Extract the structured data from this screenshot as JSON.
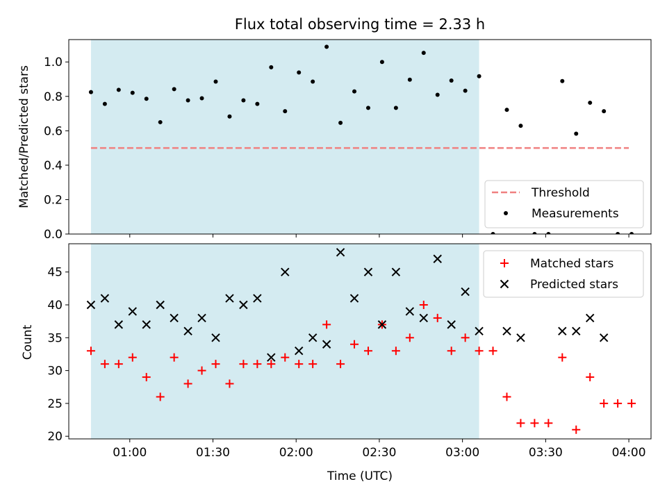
{
  "chart_data": [
    {
      "type": "scatter",
      "title": "Flux total observing time = 2.33 h",
      "ylabel": "Matched/Predicted stars",
      "xlabel": "",
      "ylim": [
        0,
        1.13
      ],
      "yticks": [
        "0.0",
        "0.2",
        "0.4",
        "0.6",
        "0.8",
        "1.0"
      ],
      "grid": false,
      "legend_position": "lower-right",
      "highlight_span": {
        "start": "00:46",
        "end": "03:06",
        "color": "#d4ebf1"
      },
      "threshold": {
        "name": "Threshold",
        "value": 0.5,
        "x_start": "00:46",
        "x_end": "04:00",
        "color": "#f08080"
      },
      "series": [
        {
          "name": "Measurements",
          "color": "#000000",
          "x": [
            "00:46",
            "00:51",
            "00:56",
            "01:01",
            "01:06",
            "01:11",
            "01:16",
            "01:21",
            "01:26",
            "01:31",
            "01:36",
            "01:41",
            "01:46",
            "01:51",
            "01:56",
            "02:01",
            "02:06",
            "02:11",
            "02:16",
            "02:21",
            "02:26",
            "02:31",
            "02:36",
            "02:41",
            "02:46",
            "02:51",
            "02:56",
            "03:01",
            "03:06",
            "03:11",
            "03:16",
            "03:21",
            "03:26",
            "03:31",
            "03:36",
            "03:41",
            "03:46",
            "03:51",
            "03:56",
            "04:01"
          ],
          "y": [
            0.825,
            0.756,
            0.838,
            0.821,
            0.786,
            0.65,
            0.842,
            0.777,
            0.789,
            0.886,
            0.683,
            0.777,
            0.756,
            0.969,
            0.714,
            0.939,
            0.886,
            1.088,
            0.646,
            0.829,
            0.733,
            1.0,
            0.733,
            0.897,
            1.053,
            0.809,
            0.892,
            0.833,
            0.917,
            0,
            0.722,
            0.629,
            0,
            0,
            0.889,
            0.583,
            0.763,
            0.714,
            0,
            0
          ]
        }
      ]
    },
    {
      "type": "scatter",
      "title": "",
      "xlabel": "Time (UTC)",
      "ylabel": "Count",
      "ylim": [
        19.6,
        49.3
      ],
      "yticks": [
        "20",
        "25",
        "30",
        "35",
        "40",
        "45"
      ],
      "xticks": [
        "01:00",
        "01:30",
        "02:00",
        "02:30",
        "03:00",
        "03:30",
        "04:00"
      ],
      "x_range": [
        "00:38",
        "04:08"
      ],
      "grid": false,
      "legend_position": "upper-right",
      "highlight_span": {
        "start": "00:46",
        "end": "03:06",
        "color": "#d4ebf1"
      },
      "series": [
        {
          "name": "Matched stars",
          "marker": "plus",
          "color": "#ff0000",
          "x": [
            "00:46",
            "00:51",
            "00:56",
            "01:01",
            "01:06",
            "01:11",
            "01:16",
            "01:21",
            "01:26",
            "01:31",
            "01:36",
            "01:41",
            "01:46",
            "01:51",
            "01:56",
            "02:01",
            "02:06",
            "02:11",
            "02:16",
            "02:21",
            "02:26",
            "02:31",
            "02:36",
            "02:41",
            "02:46",
            "02:51",
            "02:56",
            "03:01",
            "03:06",
            "03:11",
            "03:16",
            "03:21",
            "03:26",
            "03:31",
            "03:36",
            "03:41",
            "03:46",
            "03:51",
            "03:56",
            "04:01"
          ],
          "y": [
            33,
            31,
            31,
            32,
            29,
            26,
            32,
            28,
            30,
            31,
            28,
            31,
            31,
            31,
            32,
            31,
            31,
            37,
            31,
            34,
            33,
            37,
            33,
            35,
            40,
            38,
            33,
            35,
            33,
            33,
            26,
            22,
            22,
            22,
            32,
            21,
            29,
            25,
            25,
            25
          ]
        },
        {
          "name": "Predicted stars",
          "marker": "x",
          "color": "#000000",
          "x": [
            "00:46",
            "00:51",
            "00:56",
            "01:01",
            "01:06",
            "01:11",
            "01:16",
            "01:21",
            "01:26",
            "01:31",
            "01:36",
            "01:41",
            "01:46",
            "01:51",
            "01:56",
            "02:01",
            "02:06",
            "02:11",
            "02:16",
            "02:21",
            "02:26",
            "02:31",
            "02:36",
            "02:41",
            "02:46",
            "02:51",
            "02:56",
            "03:01",
            "03:06",
            "03:16",
            "03:21",
            "03:36",
            "03:41",
            "03:46",
            "03:51"
          ],
          "y": [
            40,
            41,
            37,
            39,
            37,
            40,
            38,
            36,
            38,
            35,
            41,
            40,
            41,
            32,
            45,
            33,
            35,
            34,
            48,
            41,
            45,
            37,
            45,
            39,
            38,
            47,
            37,
            42,
            36,
            36,
            35,
            36,
            36,
            38,
            35
          ]
        }
      ]
    }
  ]
}
